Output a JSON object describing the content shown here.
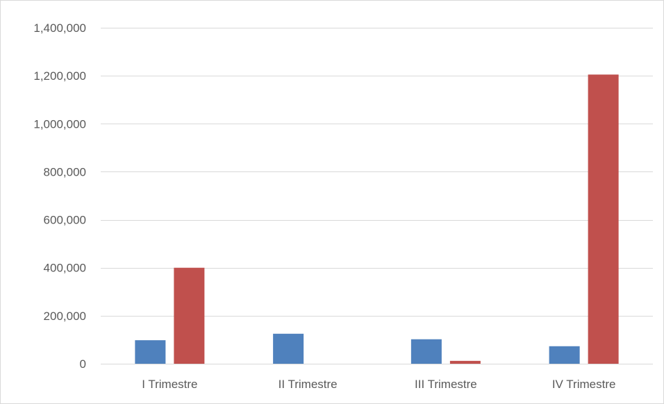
{
  "chart_data": {
    "type": "bar",
    "title": "",
    "xlabel": "",
    "ylabel": "",
    "categories": [
      "I Trimestre",
      "II Trimestre",
      "III Trimestre",
      "IV Trimestre"
    ],
    "series": [
      {
        "color": "#4f81bd",
        "values": [
          98000,
          125000,
          102000,
          73000
        ]
      },
      {
        "color": "#c0504d",
        "values": [
          400000,
          0,
          12000,
          1205000
        ]
      }
    ],
    "ylim": [
      0,
      1400000
    ],
    "yticks": [
      0,
      200000,
      400000,
      600000,
      800000,
      1000000,
      1200000,
      1400000
    ],
    "ytick_labels": [
      "0",
      "200,000",
      "400,000",
      "600,000",
      "800,000",
      "1,000,000",
      "1,200,000",
      "1,400,000"
    ],
    "grid": true,
    "legend": "none"
  }
}
